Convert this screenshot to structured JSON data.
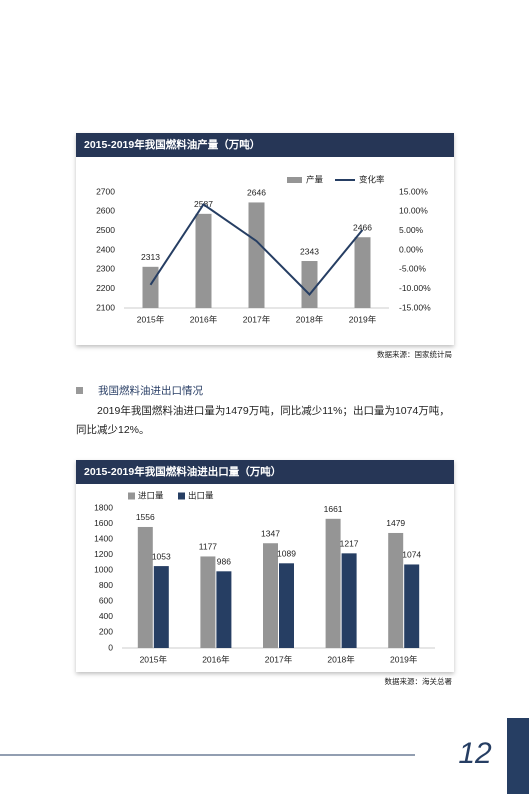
{
  "chart_data": [
    {
      "type": "combo",
      "title": "2015-2019年我国燃料油产量（万吨）",
      "categories": [
        "2015年",
        "2016年",
        "2017年",
        "2018年",
        "2019年"
      ],
      "series": [
        {
          "name": "产量",
          "color": "#959595",
          "values": [
            2313,
            2587,
            2646,
            2343,
            2466
          ]
        },
        {
          "name": "变化率",
          "color": "#263e63",
          "type": "line",
          "axis": "y2",
          "values": [
            -9,
            11.8,
            2.3,
            -11.5,
            5.2
          ]
        }
      ],
      "ylim": [
        2100,
        2700
      ],
      "yticks": [
        2100,
        2200,
        2300,
        2400,
        2500,
        2600,
        2700
      ],
      "y2lim": [
        -15,
        15
      ],
      "y2ticks": [
        {
          "value": -15,
          "label": "-15.00%"
        },
        {
          "value": -10,
          "label": "-10.00%"
        },
        {
          "value": -5,
          "label": "-5.00%"
        },
        {
          "value": 0,
          "label": "0.00%"
        },
        {
          "value": 5,
          "label": "5.00%"
        },
        {
          "value": 10,
          "label": "10.00%"
        },
        {
          "value": 15,
          "label": "15.00%"
        }
      ],
      "grid": false,
      "data_labels": true,
      "source": "数据来源：国家统计局"
    },
    {
      "type": "bar",
      "title": "2015-2019年我国燃料油进出口量（万吨）",
      "categories": [
        "2015年",
        "2016年",
        "2017年",
        "2018年",
        "2019年"
      ],
      "series": [
        {
          "name": "进口量",
          "color": "#959595",
          "values": [
            1556,
            1177,
            1347,
            1661,
            1479
          ]
        },
        {
          "name": "出口量",
          "color": "#263e63",
          "values": [
            1053,
            986,
            1089,
            1217,
            1074
          ]
        }
      ],
      "ylim": [
        0,
        1800
      ],
      "yticks": [
        0,
        200,
        400,
        600,
        800,
        1000,
        1200,
        1400,
        1600,
        1800
      ],
      "grid": false,
      "data_labels": true,
      "source": "数据来源：海关总署"
    }
  ],
  "section": {
    "heading": "我国燃料油进出口情况",
    "paragraph": "2019年我国燃料油进口量为1479万吨，同比减少11%；出口量为1074万吨，同比减少12%。"
  },
  "page_number": "12"
}
